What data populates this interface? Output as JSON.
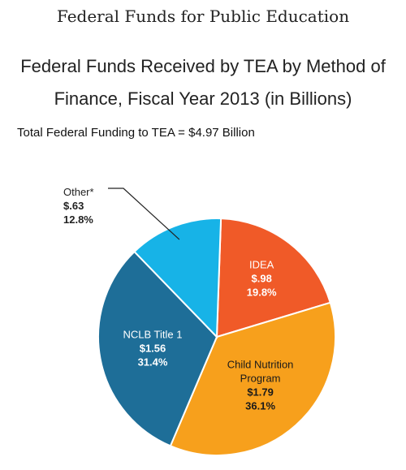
{
  "page": {
    "heading": "Federal Funds for Public Education"
  },
  "chart_data": {
    "type": "pie",
    "title": "Federal Funds Received by TEA by Method of Finance, Fiscal Year 2013 (in Billions)",
    "title_lines": [
      "Federal Funds Received by TEA by Method of",
      "Finance, Fiscal Year 2013 (in Billions)"
    ],
    "subtitle": "Total Federal Funding to TEA = $4.97 Billion",
    "slices": [
      {
        "name": "IDEA",
        "value": 0.98,
        "value_label": "$.98",
        "percent": 19.8,
        "percent_label": "19.8%",
        "color": "#f05a28"
      },
      {
        "name": "Child Nutrition Program",
        "name_lines": [
          "Child Nutrition",
          "Program"
        ],
        "value": 1.79,
        "value_label": "$1.79",
        "percent": 36.1,
        "percent_label": "36.1%",
        "color": "#f7a01c"
      },
      {
        "name": "NCLB Title 1",
        "value": 1.56,
        "value_label": "$1.56",
        "percent": 31.4,
        "percent_label": "31.4%",
        "color": "#1e6e98"
      },
      {
        "name": "Other*",
        "value": 0.63,
        "value_label": "$.63",
        "percent": 12.8,
        "percent_label": "12.8%",
        "color": "#17b3e7"
      }
    ],
    "legend": "none",
    "start_angle_deg": 2,
    "direction": "clockwise"
  }
}
